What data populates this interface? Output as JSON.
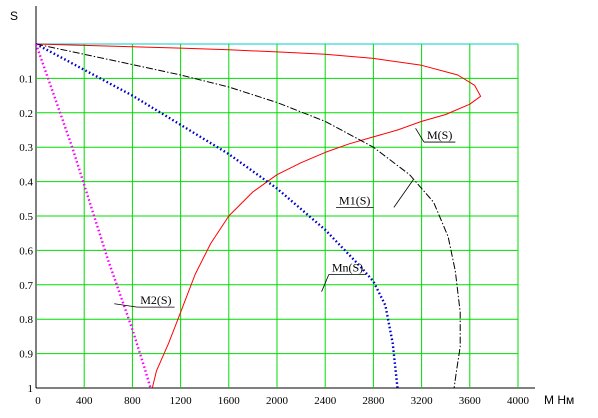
{
  "chart_data": {
    "type": "line",
    "title": "",
    "xlabel": "M  Нм",
    "ylabel": "S",
    "x_ticks": [
      0,
      400,
      800,
      1200,
      1600,
      2000,
      2400,
      2800,
      3200,
      3600,
      4000
    ],
    "y_ticks": [
      0.1,
      0.2,
      0.3,
      0.4,
      0.5,
      0.6,
      0.7,
      0.8,
      0.9,
      1
    ],
    "x_tick_labels": [
      "0",
      "400",
      "800",
      "1200",
      "1600",
      "2000",
      "2400",
      "2800",
      "3200",
      "3600",
      "4000"
    ],
    "y_tick_labels": [
      "0.1",
      "0.2",
      "0.3",
      "0.4",
      "0.5",
      "0.6",
      "0.7",
      "0.8",
      "0.9",
      "1"
    ],
    "xlim": [
      0,
      4000
    ],
    "ylim": [
      0,
      1
    ],
    "y_inverted": true,
    "grid": true,
    "colors": {
      "grid": "#00dd00",
      "grid_top": "#00cccc"
    },
    "series": [
      {
        "name": "M(S)",
        "color": "#ff0000",
        "style": "solid",
        "label_text": "M(S)",
        "label_at": [
          3220,
          0.285
        ],
        "points": [
          [
            0,
            0
          ],
          [
            400,
            0.004
          ],
          [
            800,
            0.008
          ],
          [
            1200,
            0.012
          ],
          [
            1600,
            0.017
          ],
          [
            2000,
            0.023
          ],
          [
            2400,
            0.03
          ],
          [
            2800,
            0.042
          ],
          [
            3200,
            0.062
          ],
          [
            3500,
            0.09
          ],
          [
            3640,
            0.12
          ],
          [
            3690,
            0.152
          ],
          [
            3600,
            0.175
          ],
          [
            3400,
            0.205
          ],
          [
            3200,
            0.225
          ],
          [
            3000,
            0.25
          ],
          [
            2800,
            0.27
          ],
          [
            2600,
            0.29
          ],
          [
            2400,
            0.315
          ],
          [
            2200,
            0.345
          ],
          [
            2000,
            0.38
          ],
          [
            1800,
            0.43
          ],
          [
            1600,
            0.5
          ],
          [
            1450,
            0.58
          ],
          [
            1320,
            0.67
          ],
          [
            1200,
            0.78
          ],
          [
            1100,
            0.87
          ],
          [
            1000,
            0.95
          ],
          [
            965,
            1.0
          ]
        ]
      },
      {
        "name": "M1(S)",
        "color": "#000000",
        "style": "dashdot",
        "label_text": "M1(S)",
        "label_at": [
          2490,
          0.475
        ],
        "points": [
          [
            0,
            0
          ],
          [
            400,
            0.03
          ],
          [
            800,
            0.06
          ],
          [
            1200,
            0.09
          ],
          [
            1600,
            0.125
          ],
          [
            2000,
            0.17
          ],
          [
            2400,
            0.225
          ],
          [
            2800,
            0.3
          ],
          [
            3100,
            0.38
          ],
          [
            3300,
            0.46
          ],
          [
            3420,
            0.56
          ],
          [
            3480,
            0.66
          ],
          [
            3520,
            0.78
          ],
          [
            3520,
            0.88
          ],
          [
            3490,
            0.95
          ],
          [
            3470,
            1.0
          ]
        ]
      },
      {
        "name": "Mn(S)",
        "color": "#0000cc",
        "style": "dotted",
        "label_text": "Mn(S)",
        "label_at": [
          2430,
          0.67
        ],
        "points": [
          [
            0,
            0
          ],
          [
            400,
            0.075
          ],
          [
            800,
            0.15
          ],
          [
            1200,
            0.235
          ],
          [
            1600,
            0.32
          ],
          [
            2000,
            0.42
          ],
          [
            2400,
            0.54
          ],
          [
            2700,
            0.65
          ],
          [
            2800,
            0.69
          ],
          [
            2900,
            0.76
          ],
          [
            2960,
            0.87
          ],
          [
            3000,
            1.0
          ]
        ]
      },
      {
        "name": "M2(S)",
        "color": "#ff00ff",
        "style": "dotted",
        "label_text": "M2(S)",
        "label_at": [
          840,
          0.765
        ],
        "points": [
          [
            0,
            0
          ],
          [
            300,
            0.3
          ],
          [
            600,
            0.63
          ],
          [
            800,
            0.83
          ],
          [
            900,
            0.94
          ],
          [
            950,
            1.0
          ]
        ]
      }
    ]
  }
}
